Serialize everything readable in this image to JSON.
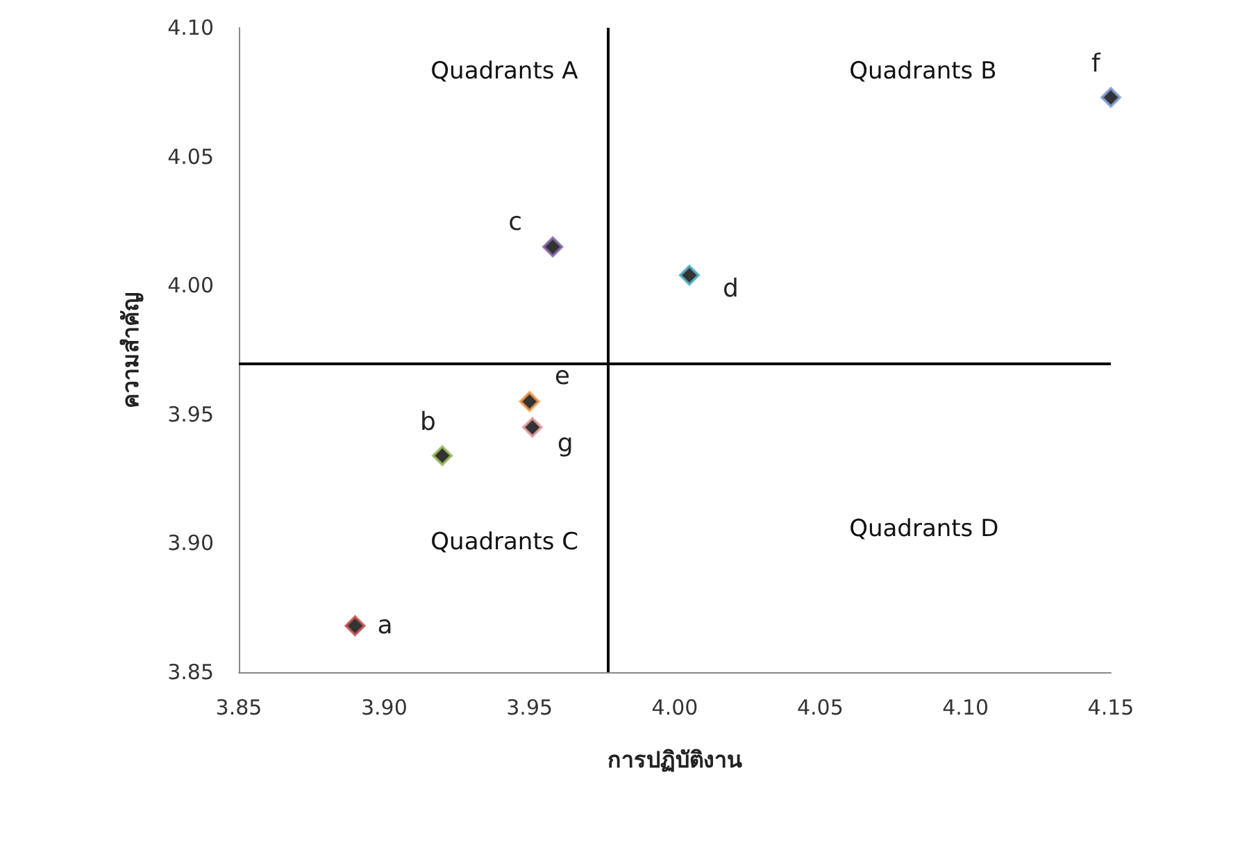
{
  "chart_data": {
    "type": "scatter",
    "xlabel": "การปฏิบัติงาน",
    "ylabel": "ความสำคัญ",
    "x": [
      3.89,
      3.92,
      3.958,
      4.005,
      3.95,
      4.15,
      3.951
    ],
    "values": [
      3.868,
      3.934,
      4.015,
      4.004,
      3.955,
      4.073,
      3.945
    ],
    "color": "#000000",
    "colors": [
      "#c0504d",
      "#9bbb59",
      "#8064a2",
      "#4bacc6",
      "#f79646",
      "#7f9fd4",
      "#e6a0a0"
    ],
    "marker": "diamond",
    "grid": false,
    "xlim": [
      3.85,
      4.15
    ],
    "xticks": [
      3.85,
      {
        "value": 3.9,
        "label": "3.90"
      },
      3.95,
      {
        "value": 4.0,
        "label": "4.00"
      },
      4.05,
      {
        "value": 4.1,
        "label": "4.10"
      },
      4.15
    ],
    "ylim": [
      3.85,
      4.1
    ],
    "yticks": [
      3.85,
      {
        "value": 3.9,
        "label": "3.90"
      },
      3.95,
      {
        "value": 4.0,
        "label": "4.00"
      },
      4.05,
      {
        "value": 4.1,
        "label": "4.10"
      }
    ],
    "ref_lines": [
      {
        "axis": "x",
        "value": 3.977,
        "color": "#000000"
      },
      {
        "axis": "y",
        "value": 3.97,
        "color": "#000000"
      }
    ],
    "annotations": [
      {
        "text": "a",
        "x": 3.89,
        "y": 3.868
      },
      {
        "text": "b",
        "x": 3.92,
        "y": 3.934
      },
      {
        "text": "c",
        "x": 3.958,
        "y": 4.015
      },
      {
        "text": "d",
        "x": 4.005,
        "y": 4.004
      },
      {
        "text": "e",
        "x": 3.95,
        "y": 3.955
      },
      {
        "text": "f",
        "x": 4.15,
        "y": 4.073
      },
      {
        "text": "g",
        "x": 3.951,
        "y": 3.945
      },
      "Quadrants A",
      "Quadrants B",
      "Quadrants C",
      "Quadrants D"
    ]
  }
}
